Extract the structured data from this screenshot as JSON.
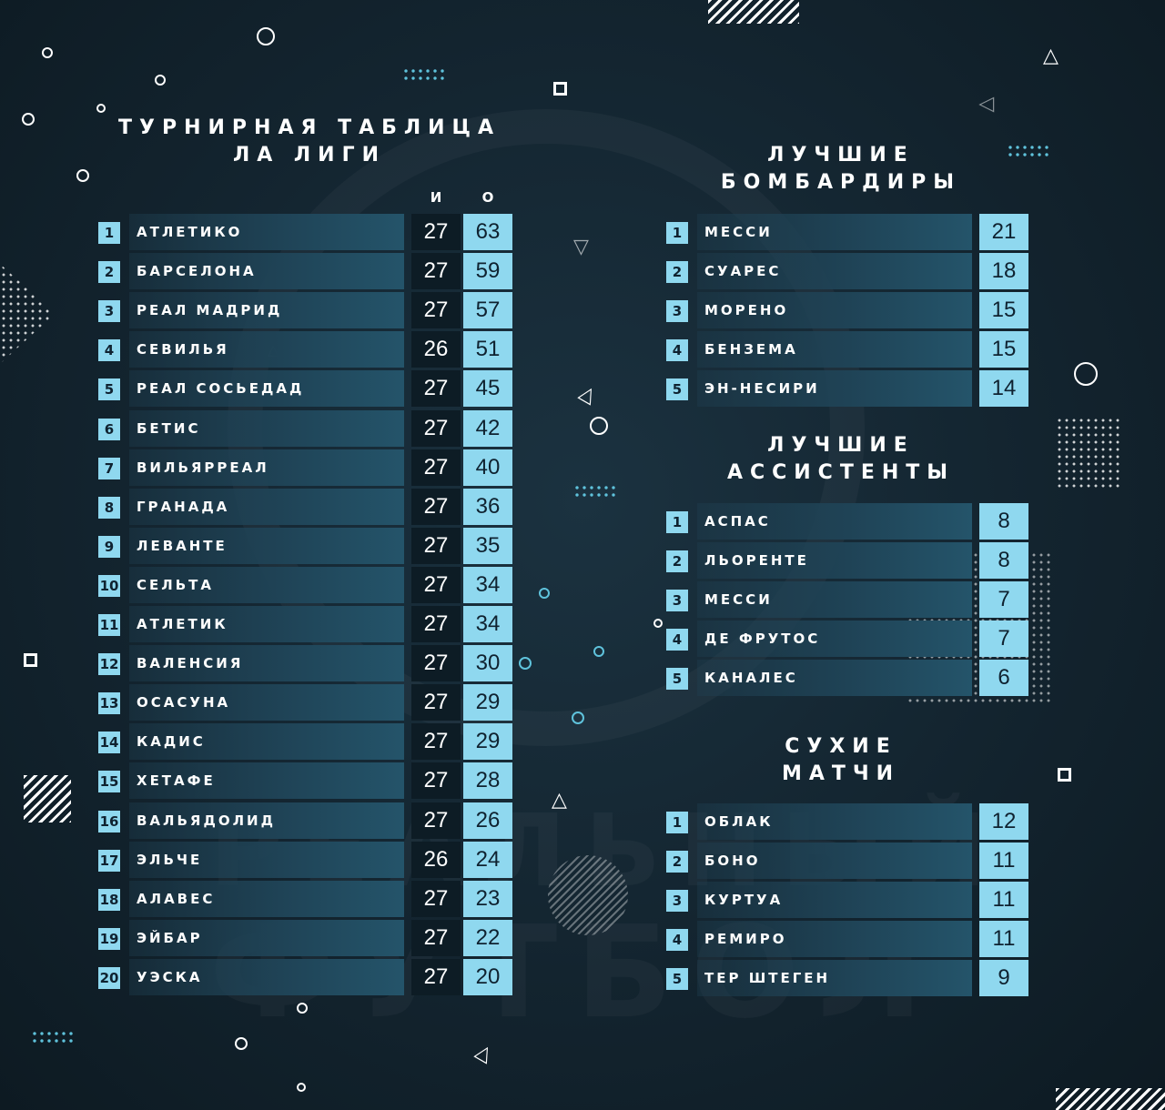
{
  "league_table": {
    "title_line1": "ТУРНИРНАЯ ТАБЛИЦА",
    "title_line2": "ЛА ЛИГИ",
    "col_games": "И",
    "col_points": "О",
    "rows": [
      {
        "pos": "1",
        "team": "АТЛЕТИКО",
        "games": "27",
        "points": "63"
      },
      {
        "pos": "2",
        "team": "БАРСЕЛОНА",
        "games": "27",
        "points": "59"
      },
      {
        "pos": "3",
        "team": "РЕАЛ МАДРИД",
        "games": "27",
        "points": "57"
      },
      {
        "pos": "4",
        "team": "СЕВИЛЬЯ",
        "games": "26",
        "points": "51"
      },
      {
        "pos": "5",
        "team": "РЕАЛ СОСЬЕДАД",
        "games": "27",
        "points": "45"
      },
      {
        "pos": "6",
        "team": "БЕТИС",
        "games": "27",
        "points": "42"
      },
      {
        "pos": "7",
        "team": "ВИЛЬЯРРЕАЛ",
        "games": "27",
        "points": "40"
      },
      {
        "pos": "8",
        "team": "ГРАНАДА",
        "games": "27",
        "points": "36"
      },
      {
        "pos": "9",
        "team": "ЛЕВАНТЕ",
        "games": "27",
        "points": "35"
      },
      {
        "pos": "10",
        "team": "СЕЛЬТА",
        "games": "27",
        "points": "34"
      },
      {
        "pos": "11",
        "team": "АТЛЕТИК",
        "games": "27",
        "points": "34"
      },
      {
        "pos": "12",
        "team": "ВАЛЕНСИЯ",
        "games": "27",
        "points": "30"
      },
      {
        "pos": "13",
        "team": "ОСАСУНА",
        "games": "27",
        "points": "29"
      },
      {
        "pos": "14",
        "team": "КАДИС",
        "games": "27",
        "points": "29"
      },
      {
        "pos": "15",
        "team": "ХЕТАФЕ",
        "games": "27",
        "points": "28"
      },
      {
        "pos": "16",
        "team": "ВАЛЬЯДОЛИД",
        "games": "27",
        "points": "26"
      },
      {
        "pos": "17",
        "team": "ЭЛЬЧЕ",
        "games": "26",
        "points": "24"
      },
      {
        "pos": "18",
        "team": "АЛАВЕС",
        "games": "27",
        "points": "23"
      },
      {
        "pos": "19",
        "team": "ЭЙБАР",
        "games": "27",
        "points": "22"
      },
      {
        "pos": "20",
        "team": "УЭСКА",
        "games": "27",
        "points": "20"
      }
    ]
  },
  "scorers": {
    "title_line1": "ЛУЧШИЕ",
    "title_line2": "БОМБАРДИРЫ",
    "rows": [
      {
        "pos": "1",
        "name": "МЕССИ",
        "value": "21"
      },
      {
        "pos": "2",
        "name": "СУАРЕС",
        "value": "18"
      },
      {
        "pos": "3",
        "name": "МОРЕНО",
        "value": "15"
      },
      {
        "pos": "4",
        "name": "БЕНЗЕМА",
        "value": "15"
      },
      {
        "pos": "5",
        "name": "ЭН-НЕСИРИ",
        "value": "14"
      }
    ]
  },
  "assists": {
    "title_line1": "ЛУЧШИЕ",
    "title_line2": "АССИСТЕНТЫ",
    "rows": [
      {
        "pos": "1",
        "name": "АСПАС",
        "value": "8"
      },
      {
        "pos": "2",
        "name": "ЛЬОРЕНТЕ",
        "value": "8"
      },
      {
        "pos": "3",
        "name": "МЕССИ",
        "value": "7"
      },
      {
        "pos": "4",
        "name": "ДЕ ФРУТОС",
        "value": "7"
      },
      {
        "pos": "5",
        "name": "КАНАЛЕС",
        "value": "6"
      }
    ]
  },
  "clean_sheets": {
    "title_line1": "СУХИЕ",
    "title_line2": "МАТЧИ",
    "rows": [
      {
        "pos": "1",
        "name": "ОБЛАК",
        "value": "12"
      },
      {
        "pos": "2",
        "name": "БОНО",
        "value": "11"
      },
      {
        "pos": "3",
        "name": "КУРТУА",
        "value": "11"
      },
      {
        "pos": "4",
        "name": "РЕМИРО",
        "value": "11"
      },
      {
        "pos": "5",
        "name": "ТЕР ШТЕГЕН",
        "value": "9"
      }
    ]
  },
  "watermark": {
    "line1": "РЕАЛЬНЫЙ",
    "line2": "ФУТБОЛ"
  },
  "colors": {
    "background": "#13242f",
    "accent": "#8fd8ef",
    "row_bar": "#1f4356",
    "games_cell": "#0d1c25"
  }
}
